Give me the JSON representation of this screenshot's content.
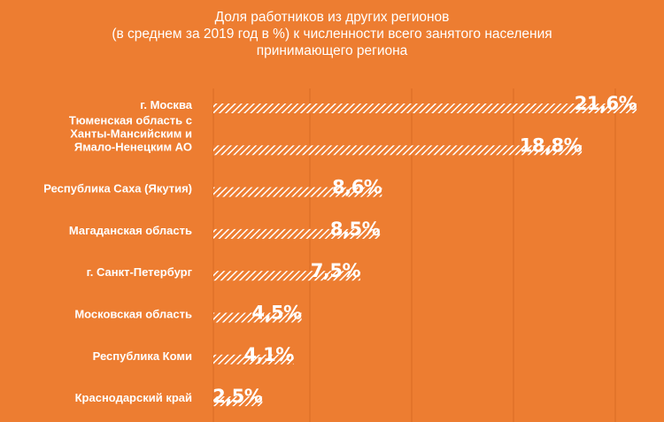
{
  "title_lines": [
    "Доля работников из других регионов",
    "(в среднем за 2019 год в %) к численности всего занятого населения",
    "принимающего региона"
  ],
  "colors": {
    "background": "#ED7D31",
    "bar": "#FFFFFF",
    "text": "#FFFFFF",
    "grid": "#D96A22"
  },
  "chart_data": {
    "type": "bar",
    "orientation": "horizontal",
    "title": "Доля работников из других регионов (в среднем за 2019 год в %) к численности всего занятого населения принимающего региона",
    "categories": [
      [
        "г. Москва"
      ],
      [
        "Тюменская область с",
        "Ханты-Мансийским и",
        "Ямало-Ненецким АО"
      ],
      [
        "Республика Саха (Якутия)"
      ],
      [
        "Магаданская область"
      ],
      [
        "г. Санкт-Петербург"
      ],
      [
        "Московская область"
      ],
      [
        "Республика Коми"
      ],
      [
        "Краснодарский край"
      ]
    ],
    "values": [
      21.6,
      18.8,
      8.6,
      8.5,
      7.5,
      4.5,
      4.1,
      2.5
    ],
    "value_labels": [
      "21,6%",
      "18,8%",
      "8,6%",
      "8,5%",
      "7,5%",
      "4,5%",
      "4,1%",
      "2,5%"
    ],
    "xlim": [
      0,
      22
    ],
    "grid": true,
    "bar_fill": "hatched"
  }
}
